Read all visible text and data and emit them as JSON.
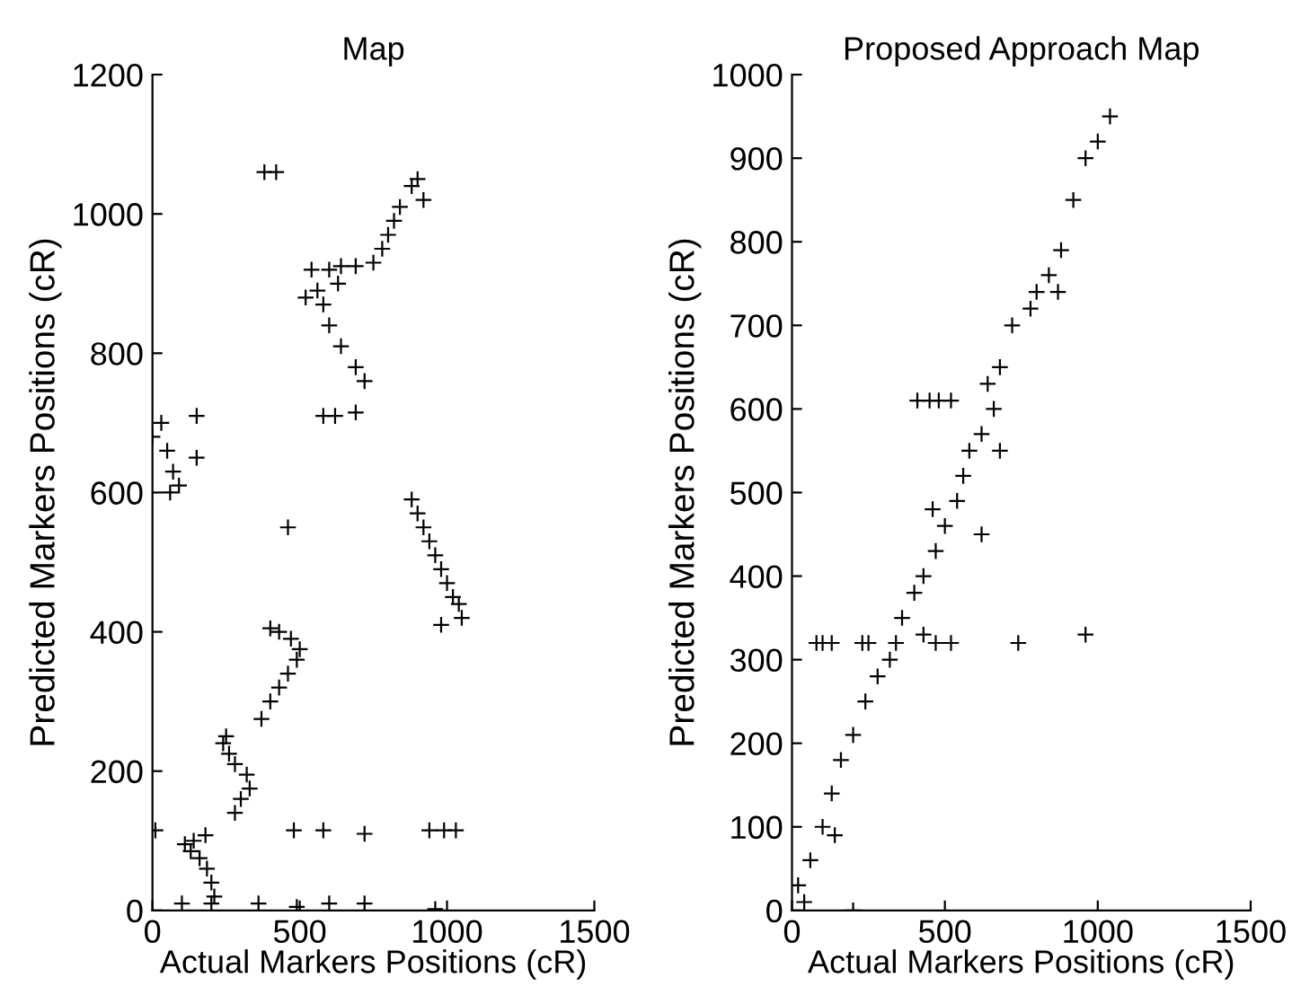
{
  "chart_data": [
    {
      "type": "scatter",
      "title": "Map",
      "xlabel": "Actual Markers Positions (cR)",
      "ylabel": "Predicted Markers Positions (cR)",
      "xlim": [
        0,
        1500
      ],
      "xticks": [
        0,
        500,
        1000,
        1500
      ],
      "ylim": [
        0,
        1200
      ],
      "yticks": [
        0,
        200,
        400,
        600,
        800,
        1000,
        1200
      ],
      "marker": "cross",
      "grid": false,
      "legend": false,
      "series": [
        {
          "color": "#000000",
          "x": [
            210,
            200,
            185,
            160,
            130,
            110,
            140,
            180,
            280,
            300,
            330,
            320,
            280,
            260,
            240,
            250,
            370,
            400,
            430,
            460,
            490,
            500,
            470,
            430,
            400,
            880,
            900,
            920,
            940,
            960,
            980,
            1000,
            1020,
            1040,
            1050,
            0,
            30,
            50,
            70,
            90,
            60,
            690,
            720,
            690,
            640,
            600,
            580,
            630,
            560,
            520,
            750,
            780,
            800,
            820,
            840,
            880,
            900,
            920,
            380,
            420,
            150,
            150,
            460,
            980,
            10,
            480,
            580,
            720,
            940,
            990,
            1030,
            100,
            200,
            360,
            490,
            600,
            720,
            960,
            540,
            600,
            640,
            690,
            580,
            620
          ],
          "values": [
            20,
            40,
            60,
            75,
            85,
            95,
            100,
            108,
            140,
            160,
            175,
            195,
            210,
            225,
            240,
            250,
            275,
            300,
            320,
            340,
            360,
            375,
            390,
            400,
            405,
            590,
            570,
            550,
            530,
            510,
            490,
            470,
            450,
            440,
            420,
            680,
            700,
            660,
            630,
            610,
            600,
            715,
            760,
            780,
            810,
            840,
            870,
            900,
            890,
            880,
            930,
            950,
            970,
            990,
            1010,
            1040,
            1050,
            1020,
            1060,
            1060,
            710,
            650,
            550,
            410,
            115,
            115,
            115,
            110,
            115,
            115,
            115,
            10,
            10,
            10,
            5,
            10,
            10,
            2,
            920,
            920,
            925,
            925,
            710,
            710
          ]
        }
      ]
    },
    {
      "type": "scatter",
      "title": "Proposed Approach Map",
      "xlabel": "Actual Markers Positions (cR)",
      "ylabel": "Predicted Markers Positions (cR)",
      "xlim": [
        0,
        1500
      ],
      "xticks": [
        0,
        500,
        1000,
        1500
      ],
      "ylim": [
        0,
        1000
      ],
      "yticks": [
        0,
        100,
        200,
        300,
        400,
        500,
        600,
        700,
        800,
        900,
        1000
      ],
      "marker": "cross",
      "grid": false,
      "legend": false,
      "series": [
        {
          "color": "#000000",
          "x": [
            20,
            40,
            60,
            100,
            130,
            160,
            200,
            240,
            280,
            320,
            340,
            360,
            400,
            430,
            470,
            500,
            540,
            560,
            580,
            620,
            660,
            640,
            680,
            720,
            780,
            800,
            840,
            880,
            920,
            960,
            1000,
            1040,
            80,
            100,
            130,
            230,
            250,
            430,
            470,
            520,
            740,
            960,
            410,
            450,
            480,
            520,
            200,
            140,
            460,
            620,
            680,
            870
          ],
          "values": [
            30,
            10,
            60,
            100,
            140,
            180,
            210,
            250,
            280,
            300,
            320,
            350,
            380,
            400,
            430,
            460,
            490,
            520,
            550,
            570,
            600,
            630,
            650,
            700,
            720,
            740,
            760,
            790,
            850,
            900,
            920,
            950,
            320,
            320,
            320,
            320,
            320,
            330,
            320,
            320,
            320,
            330,
            610,
            610,
            610,
            610,
            0,
            90,
            480,
            450,
            550,
            740
          ]
        }
      ]
    }
  ]
}
